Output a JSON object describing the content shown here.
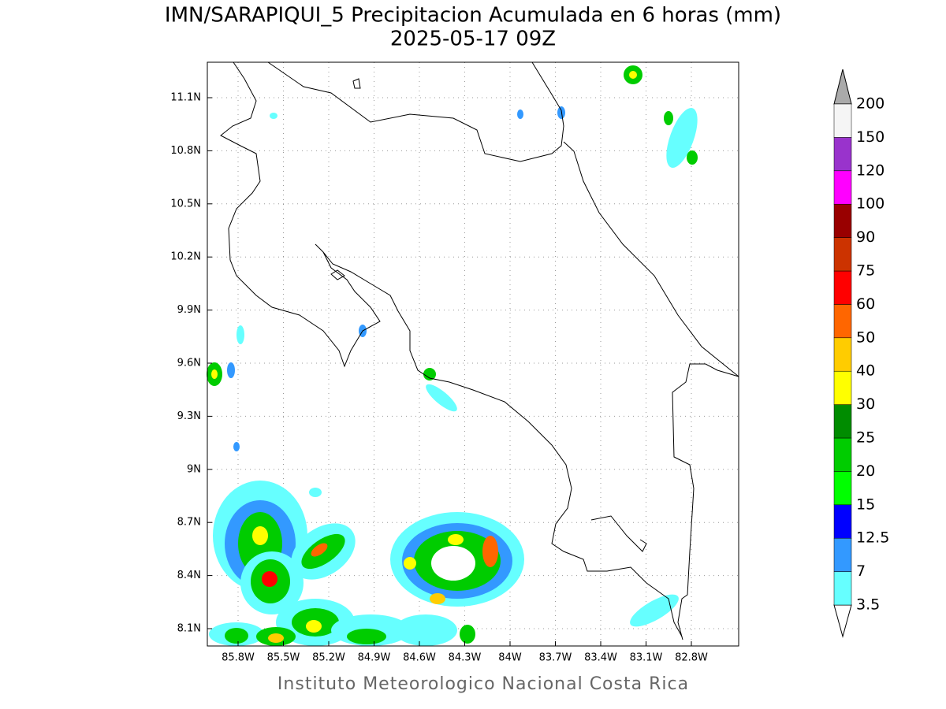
{
  "title": "IMN/SARAPIQUI_5 Precipitacion Acumulada en 6 horas (mm)",
  "subtitle": "2025-05-17 09Z",
  "lat_labels": [
    "11.1N",
    "10.8N",
    "10.5N",
    "10.2N",
    "9.9N",
    "9.6N",
    "9.3N",
    "9N",
    "8.7N",
    "8.4N",
    "8.1N"
  ],
  "lon_labels": [
    "85.8W",
    "85.5W",
    "85.2W",
    "84.9W",
    "84.6W",
    "84.3W",
    "84W",
    "83.7W",
    "83.4W",
    "83.1W",
    "82.8W"
  ],
  "colorbar": {
    "levels": [
      3.5,
      7,
      12.5,
      15,
      20,
      25,
      30,
      40,
      50,
      60,
      75,
      90,
      100,
      120,
      150,
      200
    ],
    "colors": [
      "#66ffff",
      "#3399ff",
      "#0000ff",
      "#00ff00",
      "#00cc00",
      "#008c00",
      "#ffff00",
      "#ffcc00",
      "#ff6600",
      "#ff0000",
      "#cc3300",
      "#990000",
      "#ff00ff",
      "#9933cc",
      "#f5f5f5"
    ],
    "under_color": "#ffffff",
    "over_color": "#aaaaaa"
  },
  "footer": "Instituto Meteorologico Nacional Costa Rica"
}
